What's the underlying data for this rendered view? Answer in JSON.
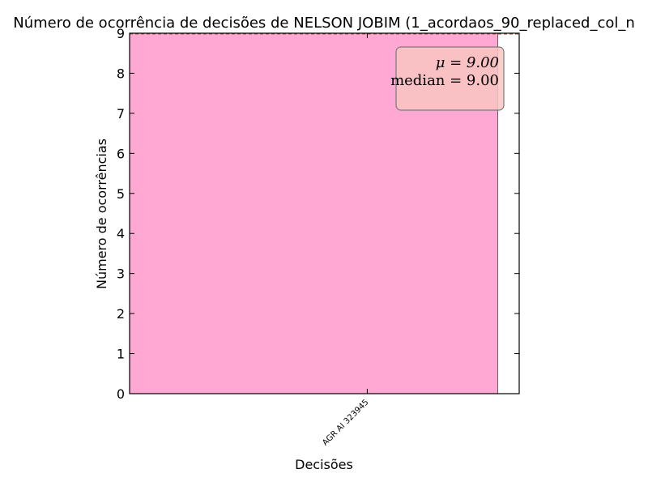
{
  "chart_data": {
    "type": "bar",
    "title": "Número de ocorrência de decisões de NELSON JOBIM (1_acordaos_90_replaced_col_n",
    "xlabel": "Decisões",
    "ylabel": "Número de ocorrências",
    "categories": [
      "AGR AI 323945"
    ],
    "values": [
      9
    ],
    "ylim": [
      0,
      9
    ],
    "yticks": [
      0,
      1,
      2,
      3,
      4,
      5,
      6,
      7,
      8,
      9
    ],
    "grid": false,
    "bar_color": "#ffa8d3",
    "stats": {
      "mean_label": "μ = 9.00",
      "median_label": "median = 9.00",
      "box_color": "#f9c5c2",
      "placement": "top-right"
    }
  }
}
